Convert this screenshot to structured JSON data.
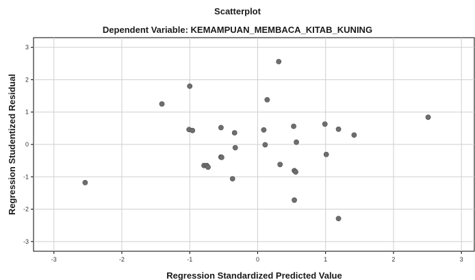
{
  "chart_data": {
    "type": "scatter",
    "title": "Scatterplot",
    "subtitle": "Dependent Variable: KEMAMPUAN_MEMBACA_KITAB_KUNING",
    "xlabel": "Regression Standardized Predicted Value",
    "ylabel": "Regression Studentized Residual",
    "xlim": [
      -3.3,
      3.2
    ],
    "ylim": [
      -3.3,
      3.3
    ],
    "x_ticks": [
      -3,
      -2,
      -1,
      0,
      1,
      2,
      3
    ],
    "y_ticks": [
      3,
      2,
      1,
      0,
      -1,
      -2,
      -3
    ],
    "grid": true,
    "point_color": "#6e6e6e",
    "grid_color": "#cfcfcf",
    "points": [
      {
        "x": -2.54,
        "y": -1.18
      },
      {
        "x": -1.41,
        "y": 1.25
      },
      {
        "x": -1.0,
        "y": 1.8
      },
      {
        "x": -1.01,
        "y": 0.46
      },
      {
        "x": -0.96,
        "y": 0.43
      },
      {
        "x": -0.79,
        "y": -0.65
      },
      {
        "x": -0.75,
        "y": -0.65
      },
      {
        "x": -0.73,
        "y": -0.7
      },
      {
        "x": -0.54,
        "y": 0.52
      },
      {
        "x": -0.54,
        "y": -0.39
      },
      {
        "x": -0.53,
        "y": -0.4
      },
      {
        "x": -0.37,
        "y": -1.06
      },
      {
        "x": -0.34,
        "y": 0.36
      },
      {
        "x": -0.33,
        "y": -0.1
      },
      {
        "x": 0.09,
        "y": 0.45
      },
      {
        "x": 0.11,
        "y": -0.01
      },
      {
        "x": 0.14,
        "y": 1.38
      },
      {
        "x": 0.31,
        "y": 2.56
      },
      {
        "x": 0.33,
        "y": -0.62
      },
      {
        "x": 0.53,
        "y": 0.56
      },
      {
        "x": 0.54,
        "y": -0.81
      },
      {
        "x": 0.54,
        "y": -1.72
      },
      {
        "x": 0.56,
        "y": -0.85
      },
      {
        "x": 0.57,
        "y": 0.07
      },
      {
        "x": 0.99,
        "y": 0.63
      },
      {
        "x": 1.01,
        "y": -0.31
      },
      {
        "x": 1.19,
        "y": 0.47
      },
      {
        "x": 1.19,
        "y": -2.29
      },
      {
        "x": 1.42,
        "y": 0.29
      },
      {
        "x": 2.51,
        "y": 0.84
      }
    ]
  }
}
